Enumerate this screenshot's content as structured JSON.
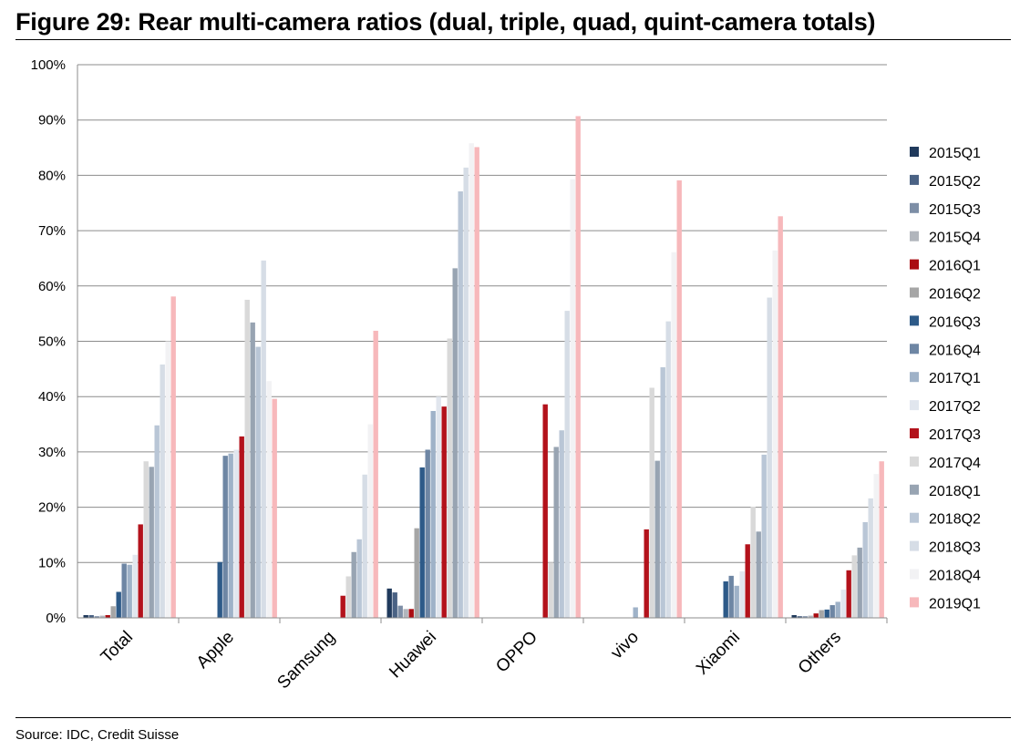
{
  "figure": {
    "title": "Figure 29: Rear multi-camera ratios (dual, triple, quad, quint-camera totals)",
    "source": "Source: IDC, Credit Suisse"
  },
  "chart_data": {
    "type": "bar",
    "title": "",
    "xlabel": "",
    "ylabel": "",
    "ylim": [
      0,
      100
    ],
    "y_ticks": [
      "0%",
      "10%",
      "20%",
      "30%",
      "40%",
      "50%",
      "60%",
      "70%",
      "80%",
      "90%",
      "100%"
    ],
    "grid": true,
    "legend_position": "right",
    "categories": [
      "Total",
      "Apple",
      "Samsung",
      "Huawei",
      "OPPO",
      "vivo",
      "Xiaomi",
      "Others"
    ],
    "series": [
      {
        "name": "2015Q1",
        "color": "#203a5c",
        "values": [
          0.5,
          0,
          0,
          5.3,
          0,
          0,
          0,
          0.5
        ]
      },
      {
        "name": "2015Q2",
        "color": "#4a6284",
        "values": [
          0.5,
          0,
          0,
          4.6,
          0,
          0,
          0,
          0.3
        ]
      },
      {
        "name": "2015Q3",
        "color": "#7d8ea6",
        "values": [
          0.3,
          0,
          0,
          2.2,
          0,
          0,
          0,
          0.3
        ]
      },
      {
        "name": "2015Q4",
        "color": "#b1b5bc",
        "values": [
          0.4,
          0,
          0,
          1.6,
          0,
          0,
          0,
          0.4
        ]
      },
      {
        "name": "2016Q1",
        "color": "#aa0c12",
        "values": [
          0.5,
          0,
          0,
          1.6,
          0,
          0,
          0,
          0.8
        ]
      },
      {
        "name": "2016Q2",
        "color": "#a6a6a6",
        "values": [
          2.1,
          0,
          0,
          16.2,
          0,
          0,
          0,
          1.4
        ]
      },
      {
        "name": "2016Q3",
        "color": "#2d5a88",
        "values": [
          4.7,
          10.1,
          0,
          27.2,
          0,
          0,
          6.6,
          1.5
        ]
      },
      {
        "name": "2016Q4",
        "color": "#6e86a4",
        "values": [
          9.8,
          29.3,
          0,
          30.4,
          0,
          0,
          7.6,
          2.3
        ]
      },
      {
        "name": "2017Q1",
        "color": "#9fb2c8",
        "values": [
          9.6,
          29.7,
          0,
          37.4,
          0,
          1.9,
          5.8,
          2.9
        ]
      },
      {
        "name": "2017Q2",
        "color": "#e1e6ee",
        "values": [
          11.4,
          30.4,
          0,
          40.0,
          0,
          0,
          8.4,
          5.1
        ]
      },
      {
        "name": "2017Q3",
        "color": "#b3121b",
        "values": [
          16.9,
          32.8,
          4.0,
          38.2,
          38.6,
          16.0,
          13.3,
          8.6
        ]
      },
      {
        "name": "2017Q4",
        "color": "#d9d9d9",
        "values": [
          28.3,
          57.5,
          7.5,
          50.5,
          10.0,
          41.6,
          20.1,
          11.3
        ]
      },
      {
        "name": "2018Q1",
        "color": "#98a4b2",
        "values": [
          27.3,
          53.4,
          11.9,
          63.2,
          30.9,
          28.4,
          15.6,
          12.7
        ]
      },
      {
        "name": "2018Q2",
        "color": "#b9c6d6",
        "values": [
          34.8,
          49.0,
          14.2,
          77.1,
          33.9,
          45.3,
          29.5,
          17.3
        ]
      },
      {
        "name": "2018Q3",
        "color": "#d6dde6",
        "values": [
          45.8,
          64.6,
          25.9,
          81.4,
          55.5,
          53.6,
          57.9,
          21.6
        ]
      },
      {
        "name": "2018Q4",
        "color": "#f2f2f4",
        "values": [
          50.0,
          42.8,
          35.0,
          85.8,
          79.3,
          66.1,
          66.4,
          26.0
        ]
      },
      {
        "name": "2019Q1",
        "color": "#f7b8bb",
        "values": [
          58.1,
          39.6,
          51.9,
          85.1,
          90.7,
          79.1,
          72.6,
          28.3
        ]
      }
    ]
  }
}
